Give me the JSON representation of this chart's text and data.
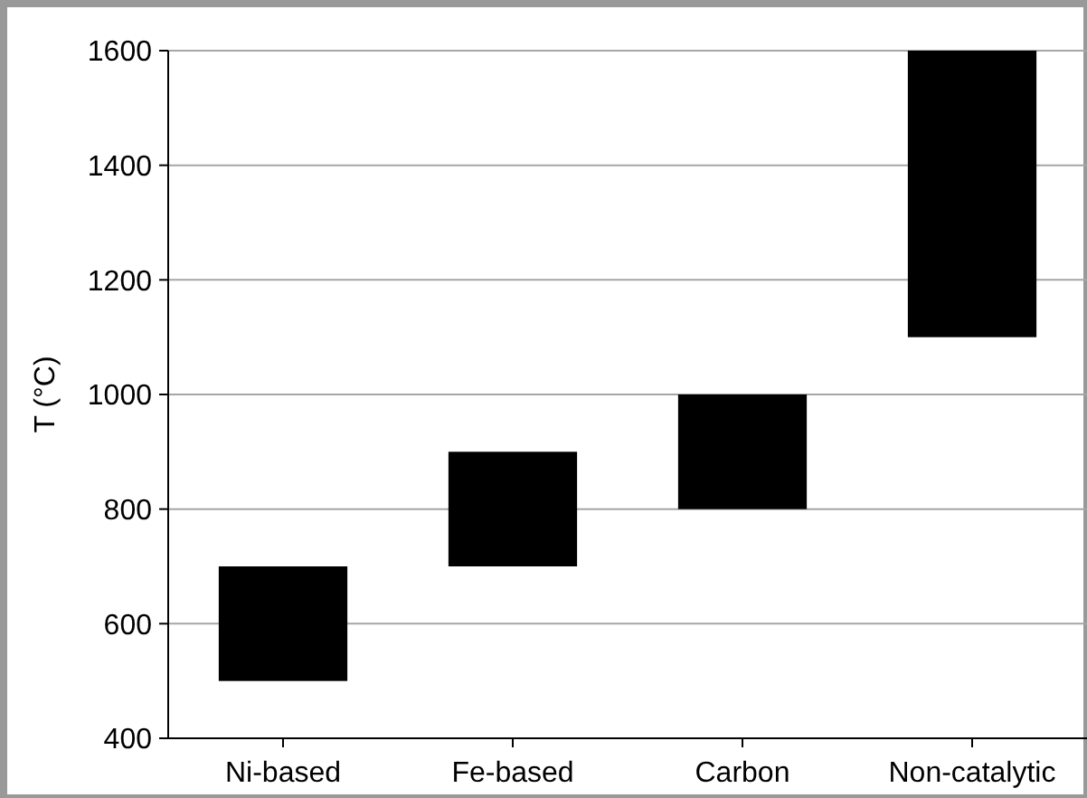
{
  "chart_data": {
    "type": "bar",
    "ylabel": "T (°C)",
    "categories": [
      "Ni-based",
      "Fe-based",
      "Carbon",
      "Non-catalytic"
    ],
    "values": [
      200,
      200,
      200,
      500
    ],
    "base": [
      500,
      700,
      800,
      1100
    ],
    "color": "#000000",
    "ylim": [
      400,
      1600
    ],
    "yticks": [
      400,
      600,
      800,
      1000,
      1200,
      1400,
      1600
    ],
    "grid": "y"
  }
}
